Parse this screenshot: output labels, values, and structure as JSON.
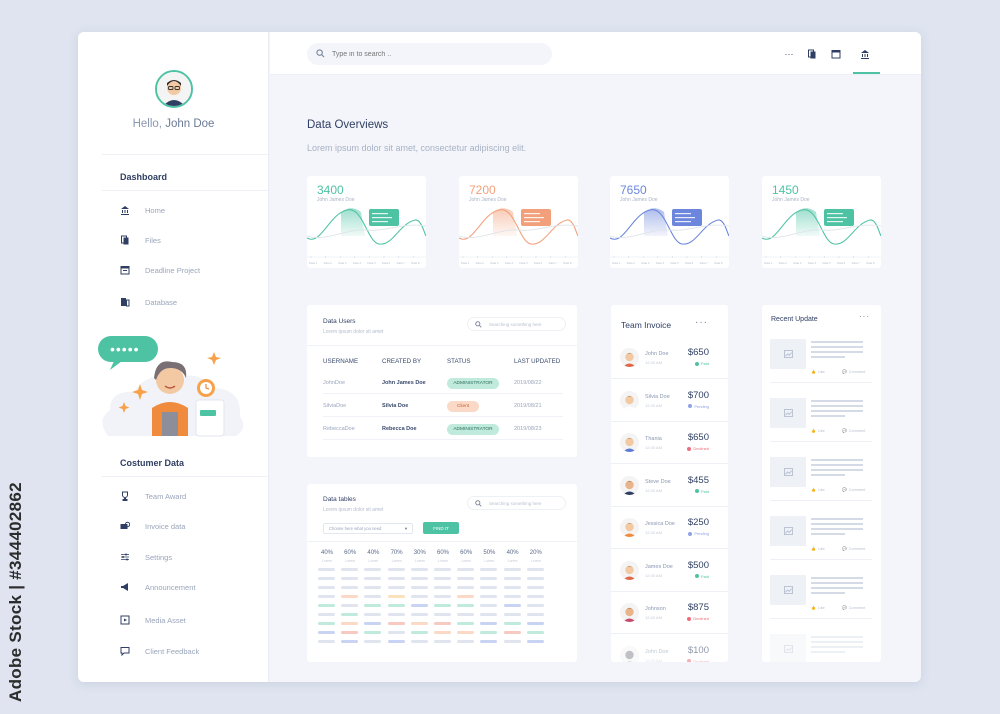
{
  "watermark": {
    "side_text": "Adobe Stock | #344402862"
  },
  "sidebar": {
    "greeting": "Hello,",
    "user_name": "John Doe",
    "sections": [
      {
        "title": "Dashboard",
        "items": [
          {
            "label": "Home",
            "icon": "bank-icon"
          },
          {
            "label": "Files",
            "icon": "files-icon"
          },
          {
            "label": "Deadline Project",
            "icon": "calendar-icon"
          },
          {
            "label": "Database",
            "icon": "database-icon"
          }
        ]
      },
      {
        "title": "Costumer Data",
        "items": [
          {
            "label": "Team Award",
            "icon": "trophy-icon"
          },
          {
            "label": "Invoice data",
            "icon": "money-icon"
          },
          {
            "label": "Settings",
            "icon": "sliders-icon"
          },
          {
            "label": "Announcement",
            "icon": "megaphone-icon"
          },
          {
            "label": "Media Asset",
            "icon": "media-icon"
          },
          {
            "label": "Client Feedback",
            "icon": "chat-icon"
          }
        ]
      }
    ],
    "illustration_bubble": "•••••"
  },
  "topbar": {
    "search_placeholder": "Type in to search ..",
    "more": "···"
  },
  "overview": {
    "title": "Data Overviews",
    "subtitle": "Lorem ipsum dolor sit amet, consectetur adipiscing elit.",
    "cards": [
      {
        "value": "3400",
        "name": "John James Doe",
        "color": "#4ec3a4"
      },
      {
        "value": "7200",
        "name": "John James Doe",
        "color": "#f2a07b"
      },
      {
        "value": "7650",
        "name": "John James Doe",
        "color": "#6b86dc"
      },
      {
        "value": "1450",
        "name": "John James Doe",
        "color": "#4ec3a4"
      }
    ],
    "axis_labels": [
      "Data 1",
      "Data 2",
      "Data 3",
      "Data 4",
      "Data 5",
      "Data 6",
      "Data 7",
      "Data 8"
    ]
  },
  "data_users": {
    "title": "Data Users",
    "subtitle": "Lorem ipsum dolor sit amet",
    "search_placeholder": "Searching something here",
    "columns": [
      "USERNAME",
      "CREATED BY",
      "STATUS",
      "LAST UPDATED"
    ],
    "rows": [
      {
        "username": "JohnDoe",
        "created_by": "John James Doe",
        "status": "ADMINISTRATOR",
        "status_color": "#bfeadc",
        "updated": "2019/08/22"
      },
      {
        "username": "SilviaDoe",
        "created_by": "Silvia Doe",
        "status": "Client",
        "status_color": "#fbd9c7",
        "updated": "2019/08/21"
      },
      {
        "username": "RebeccaDoe",
        "created_by": "Rebecca Doe",
        "status": "ADMINISTRATOR",
        "status_color": "#bfeadc",
        "updated": "2019/08/23"
      }
    ]
  },
  "data_tables": {
    "title": "Data tables",
    "subtitle": "Lorem ipsum dolor sit amet",
    "search_placeholder": "Searching something here",
    "select_placeholder": "Choose here what you need",
    "button": "FIND IT",
    "percents": [
      "40%",
      "60%",
      "40%",
      "70%",
      "30%",
      "60%",
      "60%",
      "50%",
      "40%",
      "20%"
    ],
    "percent_sub": "Lorem",
    "bar_colors": [
      "#dfe4ee",
      "#bfeadc",
      "#fbd9c7",
      "#c9d3f3",
      "#f7c9c0",
      "#fbe1bc"
    ]
  },
  "team_invoice": {
    "title": "Team Invoice",
    "rows": [
      {
        "name": "John Doe",
        "sub": "12.00 AM",
        "amount": "$650",
        "status": "Paid",
        "status_color": "#4ec3a4"
      },
      {
        "name": "Silvia Doe",
        "sub": "12.00 AM",
        "amount": "$700",
        "status": "Pending",
        "status_color": "#8fa2e6"
      },
      {
        "name": "Thania",
        "sub": "12.00 AM",
        "amount": "$650",
        "status": "Declined",
        "status_color": "#ef6c7a"
      },
      {
        "name": "Steve Doe",
        "sub": "12.00 AM",
        "amount": "$455",
        "status": "Paid",
        "status_color": "#4ec3a4"
      },
      {
        "name": "Jessica Doe",
        "sub": "12.00 AM",
        "amount": "$250",
        "status": "Pending",
        "status_color": "#8fa2e6"
      },
      {
        "name": "James Doe",
        "sub": "12.00 AM",
        "amount": "$500",
        "status": "Paid",
        "status_color": "#4ec3a4"
      },
      {
        "name": "Johnson",
        "sub": "12.00 AM",
        "amount": "$875",
        "status": "Declined",
        "status_color": "#ef6c7a"
      },
      {
        "name": "John Doe",
        "sub": "12.00 AM",
        "amount": "$100",
        "status": "Declined",
        "status_color": "#ef6c7a"
      }
    ]
  },
  "recent_update": {
    "title": "Recent Update",
    "like": "Like",
    "comment": "Comment"
  },
  "colors": {
    "accent": "#4ec3a4",
    "navy": "#2f3f63"
  }
}
